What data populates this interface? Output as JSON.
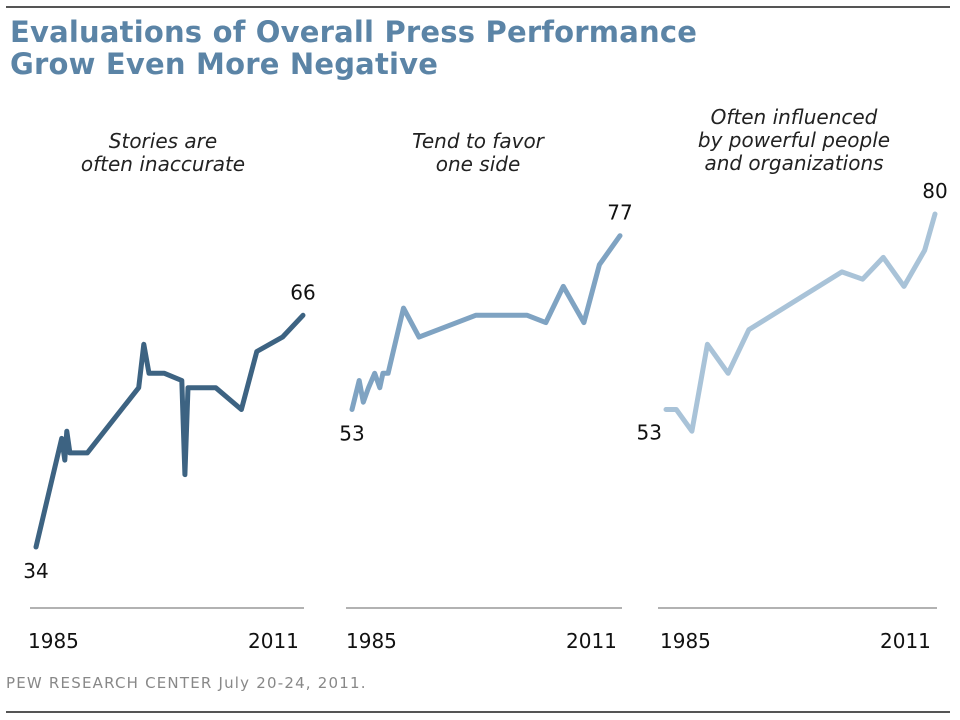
{
  "title_line1": "Evaluations of Overall Press Performance",
  "title_line2": "Grow Even More Negative",
  "footer": "PEW RESEARCH  CENTER July 20-24, 2011.",
  "chart_data": [
    {
      "type": "line",
      "title": [
        "Stories are",
        "often inaccurate"
      ],
      "color": "#3d6382",
      "xlim": [
        1985,
        2011
      ],
      "ylim": [
        30,
        85
      ],
      "x_ticks": [
        "1985",
        "2011"
      ],
      "series": [
        {
          "x": [
            1985,
            1987.5,
            1987.8,
            1988,
            1988.3,
            1988.8,
            1990,
            1995,
            1995.5,
            1996,
            1997.5,
            1999.2,
            1999.5,
            1999.8,
            2000.5,
            2002.5,
            2005,
            2006.5,
            2009,
            2011
          ],
          "values": [
            34,
            49,
            46,
            50,
            47,
            47,
            47,
            56,
            62,
            58,
            58,
            57,
            44,
            56,
            56,
            56,
            53,
            61,
            63,
            66
          ]
        }
      ],
      "labels": [
        {
          "text": "34",
          "x": 1985,
          "y": 34,
          "pos": "below"
        },
        {
          "text": "66",
          "x": 2011,
          "y": 66,
          "pos": "above"
        }
      ]
    },
    {
      "type": "line",
      "title": [
        "Tend to favor",
        "one side"
      ],
      "color": "#7fa3c2",
      "xlim": [
        1985,
        2011
      ],
      "ylim": [
        30,
        85
      ],
      "x_ticks": [
        "1985",
        "2011"
      ],
      "series": [
        {
          "x": [
            1985,
            1985.7,
            1986.1,
            1986.6,
            1987.2,
            1987.7,
            1988,
            1988.5,
            1990,
            1991.5,
            1997,
            2002,
            2003.8,
            2005.5,
            2007.5,
            2009,
            2011
          ],
          "values": [
            53,
            57,
            54,
            56,
            58,
            56,
            58,
            58,
            67,
            63,
            66,
            66,
            65,
            70,
            65,
            73,
            77
          ]
        }
      ],
      "labels": [
        {
          "text": "53",
          "x": 1985,
          "y": 53,
          "pos": "below"
        },
        {
          "text": "77",
          "x": 2011,
          "y": 77,
          "pos": "above"
        }
      ]
    },
    {
      "type": "line",
      "title": [
        "Often influenced",
        "by powerful people",
        "and organizations"
      ],
      "color": "#a9c3d8",
      "xlim": [
        1985,
        2011
      ],
      "ylim": [
        30,
        85
      ],
      "x_ticks": [
        "1985",
        "2011"
      ],
      "series": [
        {
          "x": [
            1985,
            1986,
            1987.5,
            1989,
            1991,
            1993,
            2002,
            2004,
            2006,
            2008,
            2010,
            2011
          ],
          "values": [
            53,
            53,
            50,
            62,
            58,
            64,
            72,
            71,
            74,
            70,
            75,
            80
          ]
        }
      ],
      "labels": [
        {
          "text": "53",
          "x": 1985,
          "y": 53,
          "pos": "left"
        },
        {
          "text": "80",
          "x": 2011,
          "y": 80,
          "pos": "above"
        }
      ]
    }
  ]
}
